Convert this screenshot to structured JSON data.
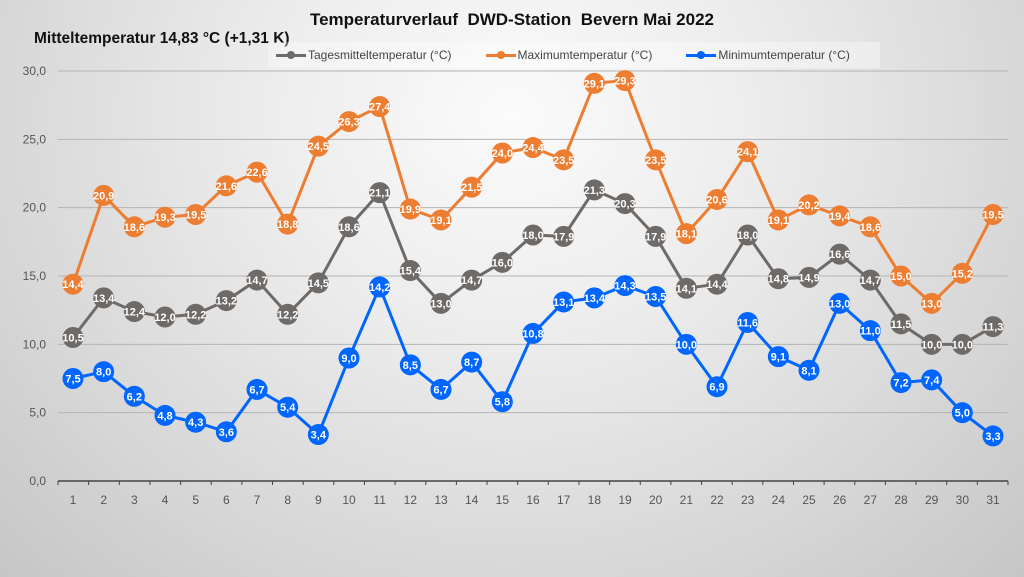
{
  "chart_data": {
    "type": "line",
    "title": "Temperaturverlauf  DWD-Station  Bevern Mai 2022",
    "subtitle": "Mitteltemperatur 14,83 °C (+1,31 K)",
    "xlabel": "",
    "ylabel": "",
    "ylim": [
      0,
      30
    ],
    "y_ticks": [
      "0,0",
      "5,0",
      "10,0",
      "15,0",
      "20,0",
      "25,0",
      "30,0"
    ],
    "y_tick_values": [
      0,
      5,
      10,
      15,
      20,
      25,
      30
    ],
    "grid": true,
    "legend_position": "top",
    "x": [
      1,
      2,
      3,
      4,
      5,
      6,
      7,
      8,
      9,
      10,
      11,
      12,
      13,
      14,
      15,
      16,
      17,
      18,
      19,
      20,
      21,
      22,
      23,
      24,
      25,
      26,
      27,
      28,
      29,
      30,
      31
    ],
    "series": [
      {
        "name": "Tagesmitteltemperatur (°C)",
        "color": "#6e6a68",
        "values": [
          10.5,
          13.4,
          12.4,
          12.0,
          12.2,
          13.2,
          14.7,
          12.2,
          14.5,
          18.6,
          21.1,
          15.4,
          13.0,
          14.7,
          16.0,
          18.0,
          17.9,
          21.3,
          20.3,
          17.9,
          14.1,
          14.4,
          18.0,
          14.8,
          14.9,
          16.6,
          14.7,
          11.5,
          10.0,
          10.0,
          11.3
        ],
        "labels": [
          "10,5",
          "13,4",
          "12,4",
          "12,0",
          "12,2",
          "13,2",
          "14,7",
          "12,2",
          "14,5",
          "18,6",
          "21,1",
          "15,4",
          "13,0",
          "14,7",
          "16,0",
          "18,0",
          "17,9",
          "21,3",
          "20,3",
          "17,9",
          "14,1",
          "14,4",
          "18,0",
          "14,8",
          "14,9",
          "16,6",
          "14,7",
          "11,5",
          "10,0",
          "10,0",
          "11,3"
        ]
      },
      {
        "name": "Maximumtemperatur (°C)",
        "color": "#ed7d31",
        "values": [
          14.4,
          20.9,
          18.6,
          19.3,
          19.5,
          21.6,
          22.6,
          18.8,
          24.5,
          26.3,
          27.4,
          19.9,
          19.1,
          21.5,
          24.0,
          24.4,
          23.5,
          29.1,
          29.3,
          23.5,
          18.1,
          20.6,
          24.1,
          19.1,
          20.2,
          19.4,
          18.6,
          15.0,
          13.0,
          15.2,
          19.5
        ],
        "labels": [
          "14,4",
          "20,9",
          "18,6",
          "19,3",
          "19,5",
          "21,6",
          "22,6",
          "18,8",
          "24,5",
          "26,3",
          "27,4",
          "19,9",
          "19,1",
          "21,5",
          "24,0",
          "24,4",
          "23,5",
          "29,1",
          "29,3",
          "23,5",
          "18,1",
          "20,6",
          "24,1",
          "19,1",
          "20,2",
          "19,4",
          "18,6",
          "15,0",
          "13,0",
          "15,2",
          "19,5"
        ]
      },
      {
        "name": "Minimumtemperatur (°C)",
        "color": "#0066ff",
        "values": [
          7.5,
          8.0,
          6.2,
          4.8,
          4.3,
          3.6,
          6.7,
          5.4,
          3.4,
          9.0,
          14.2,
          8.5,
          6.7,
          8.7,
          5.8,
          10.8,
          13.1,
          13.4,
          14.3,
          13.5,
          10.0,
          6.9,
          11.6,
          9.1,
          8.1,
          13.0,
          11.0,
          7.2,
          7.4,
          5.0,
          3.3
        ],
        "labels": [
          "7,5",
          "8,0",
          "6,2",
          "4,8",
          "4,3",
          "3,6",
          "6,7",
          "5,4",
          "3,4",
          "9,0",
          "14,2",
          "8,5",
          "6,7",
          "8,7",
          "5,8",
          "10,8",
          "13,1",
          "13,4",
          "14,3",
          "13,5",
          "10,0",
          "6,9",
          "11,6",
          "9,1",
          "8,1",
          "13,0",
          "11,0",
          "7,2",
          "7,4",
          "5,0",
          "3,3"
        ]
      }
    ]
  }
}
